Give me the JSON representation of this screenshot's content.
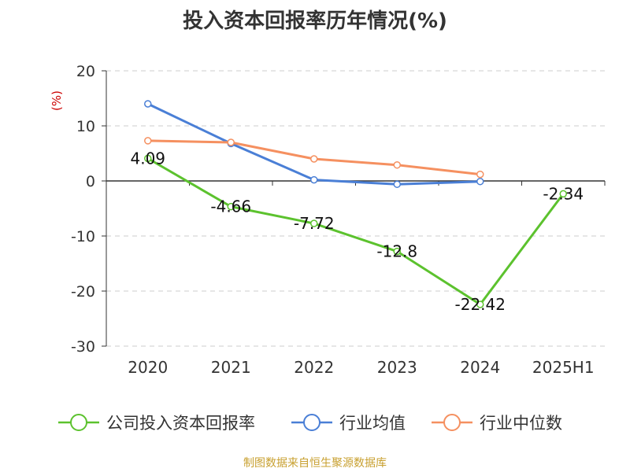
{
  "title": "投入资本回报率历年情况(%)",
  "footer": "制图数据来自恒生聚源数据库",
  "chart_data": {
    "type": "line",
    "ylabel": "(%)",
    "ylim": [
      -30,
      20
    ],
    "yticks": [
      20,
      10,
      0,
      -10,
      -20,
      -30
    ],
    "categories": [
      "2020",
      "2021",
      "2022",
      "2023",
      "2024",
      "2025H1"
    ],
    "grid": true,
    "legend_position": "bottom",
    "series": [
      {
        "name": "公司投入资本回报率",
        "color": "#5cc22e",
        "values": [
          4.09,
          -4.66,
          -7.72,
          -12.8,
          -22.42,
          -2.34
        ],
        "labels": [
          "4.09",
          "-4.66",
          "-7.72",
          "-12.8",
          "-22.42",
          "-2.34"
        ]
      },
      {
        "name": "行业均值",
        "color": "#4a7fd6",
        "values": [
          14.0,
          6.8,
          0.2,
          -0.6,
          -0.1,
          null
        ]
      },
      {
        "name": "行业中位数",
        "color": "#f59060",
        "values": [
          7.3,
          7.0,
          4.0,
          2.9,
          1.2,
          null
        ]
      }
    ]
  }
}
